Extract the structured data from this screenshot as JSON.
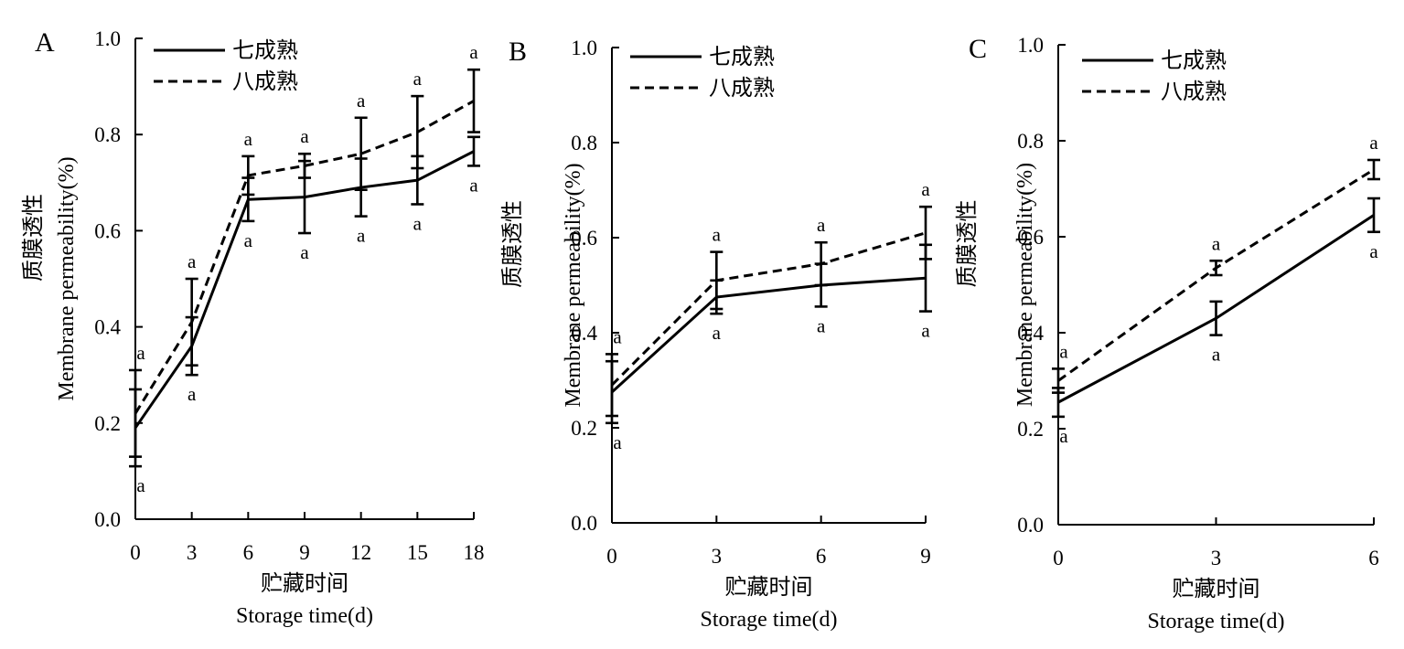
{
  "chart_data": [
    {
      "type": "line",
      "panel_label": "A",
      "x": [
        0,
        3,
        6,
        9,
        12,
        15,
        18
      ],
      "xlabel_cn": "贮藏时间",
      "xlabel": "Storage time(d)",
      "ylabel_cn": "质膜透性",
      "ylabel": "Membrane permeability(%)",
      "ylim": [
        0.0,
        1.0
      ],
      "yticks": [
        "0.0",
        "0.2",
        "0.4",
        "0.6",
        "0.8",
        "1.0"
      ],
      "xticks": [
        "0",
        "3",
        "6",
        "9",
        "12",
        "15",
        "18"
      ],
      "legend_position": "top-left",
      "grid": false,
      "series": [
        {
          "name": "七成熟",
          "style": "solid",
          "values": [
            0.19,
            0.36,
            0.665,
            0.67,
            0.69,
            0.705,
            0.765
          ],
          "errors": [
            0.08,
            0.06,
            0.045,
            0.075,
            0.06,
            0.05,
            0.03
          ],
          "labels": [
            "a",
            "a",
            "a",
            "a",
            "a",
            "a",
            "a"
          ]
        },
        {
          "name": "八成熟",
          "style": "dashed",
          "values": [
            0.22,
            0.41,
            0.715,
            0.735,
            0.76,
            0.805,
            0.87
          ],
          "errors": [
            0.09,
            0.09,
            0.04,
            0.025,
            0.075,
            0.075,
            0.065
          ],
          "labels": [
            "a",
            "a",
            "a",
            "a",
            "a",
            "a",
            "a"
          ]
        }
      ]
    },
    {
      "type": "line",
      "panel_label": "B",
      "x": [
        0,
        3,
        6,
        9
      ],
      "xlabel_cn": "贮藏时间",
      "xlabel": "Storage time(d)",
      "ylabel_cn": "质膜透性",
      "ylabel": "Membrane permeability(%)",
      "ylim": [
        0.0,
        1.0
      ],
      "yticks": [
        "0.0",
        "0.2",
        "0.4",
        "0.6",
        "0.8",
        "1.0"
      ],
      "xticks": [
        "0",
        "3",
        "6",
        "9"
      ],
      "legend_position": "top-left",
      "grid": false,
      "series": [
        {
          "name": "七成熟",
          "style": "solid",
          "values": [
            0.275,
            0.475,
            0.5,
            0.515
          ],
          "errors": [
            0.065,
            0.035,
            0.045,
            0.07
          ],
          "labels": [
            "a",
            "a",
            "a",
            "a"
          ]
        },
        {
          "name": "八成熟",
          "style": "dashed",
          "values": [
            0.29,
            0.51,
            0.545,
            0.61
          ],
          "errors": [
            0.065,
            0.06,
            0.045,
            0.055
          ],
          "labels": [
            "a",
            "a",
            "a",
            "a"
          ]
        }
      ]
    },
    {
      "type": "line",
      "panel_label": "C",
      "x": [
        0,
        3,
        6
      ],
      "xlabel_cn": "贮藏时间",
      "xlabel": "Storage time(d)",
      "ylabel_cn": "质膜透性",
      "ylabel": "Membrane permeability(%)",
      "ylim": [
        0.0,
        1.0
      ],
      "yticks": [
        "0.0",
        "0.2",
        "0.4",
        "0.6",
        "0.8",
        "1.0"
      ],
      "xticks": [
        "0",
        "3",
        "6"
      ],
      "legend_position": "top-left",
      "grid": false,
      "series": [
        {
          "name": "七成熟",
          "style": "solid",
          "values": [
            0.255,
            0.43,
            0.645
          ],
          "errors": [
            0.03,
            0.035,
            0.035
          ],
          "labels": [
            "a",
            "a",
            "a"
          ]
        },
        {
          "name": "八成熟",
          "style": "dashed",
          "values": [
            0.3,
            0.535,
            0.74
          ],
          "errors": [
            0.025,
            0.015,
            0.02
          ],
          "labels": [
            "a",
            "a",
            "a"
          ]
        }
      ]
    }
  ]
}
